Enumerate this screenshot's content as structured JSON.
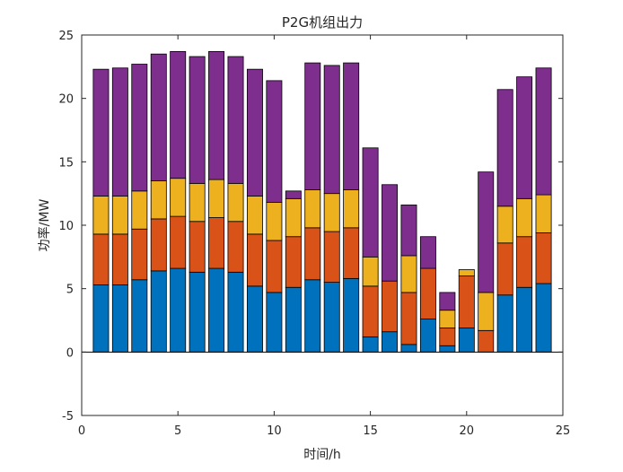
{
  "chart_data": {
    "type": "bar",
    "stacked": true,
    "title": "P2G机组出力",
    "xlabel": "时间/h",
    "ylabel": "功率/MW",
    "xlim": [
      0,
      25
    ],
    "ylim": [
      -5,
      25
    ],
    "xticks": [
      0,
      5,
      10,
      15,
      20,
      25
    ],
    "yticks": [
      -5,
      0,
      5,
      10,
      15,
      20,
      25
    ],
    "grid": false,
    "x": [
      1,
      2,
      3,
      4,
      5,
      6,
      7,
      8,
      9,
      10,
      11,
      12,
      13,
      14,
      15,
      16,
      17,
      18,
      19,
      20,
      21,
      22,
      23,
      24
    ],
    "series": [
      {
        "color": "#0072BD",
        "values": [
          5.3,
          5.3,
          5.7,
          6.4,
          6.6,
          6.3,
          6.6,
          6.3,
          5.2,
          4.7,
          5.1,
          5.7,
          5.5,
          5.8,
          1.2,
          1.6,
          0.6,
          2.6,
          0.5,
          1.9,
          0.0,
          4.5,
          5.1,
          5.4
        ]
      },
      {
        "color": "#D95319",
        "values": [
          4.0,
          4.0,
          4.0,
          4.1,
          4.1,
          4.0,
          4.0,
          4.0,
          4.1,
          4.1,
          4.0,
          4.1,
          4.0,
          4.0,
          4.0,
          4.0,
          4.1,
          4.0,
          1.4,
          4.1,
          1.7,
          4.1,
          4.0,
          4.0
        ]
      },
      {
        "color": "#EDB120",
        "values": [
          3.0,
          3.0,
          3.0,
          3.0,
          3.0,
          3.0,
          3.0,
          3.0,
          3.0,
          3.0,
          3.0,
          3.0,
          3.0,
          3.0,
          2.3,
          0.0,
          2.9,
          0.0,
          1.4,
          0.5,
          3.0,
          2.9,
          3.0,
          3.0
        ]
      },
      {
        "color": "#7E2F8E",
        "values": [
          10.0,
          10.1,
          10.0,
          10.0,
          10.0,
          10.0,
          10.1,
          10.0,
          10.0,
          9.6,
          0.6,
          10.0,
          10.1,
          10.0,
          8.6,
          7.6,
          4.0,
          2.5,
          1.4,
          0.0,
          9.5,
          9.2,
          9.6,
          10.0
        ]
      }
    ]
  }
}
